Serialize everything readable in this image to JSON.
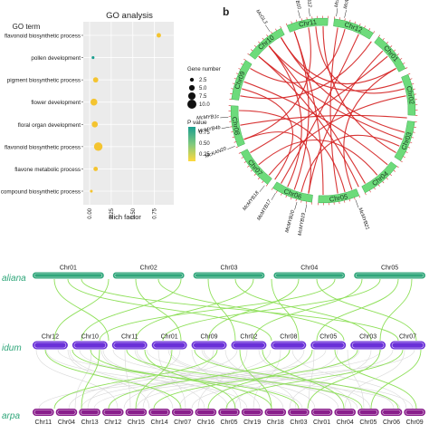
{
  "panel_a": {
    "title": "GO analysis",
    "legend_title": "GO term",
    "xlabel": "Rich factor",
    "terms": [
      "flavonoid biosynthetic process",
      "pollen development",
      "pigment biosynthetic process",
      "flower development",
      "floral organ development",
      "flavonoid biosynthetic process",
      "flavone metabolic process",
      "compound biosynthetic process"
    ],
    "size_legend": {
      "title": "Gene number",
      "values": [
        "2.5",
        "5.0",
        "7.5",
        "10.0"
      ]
    },
    "color_legend": {
      "title": "P value",
      "values": [
        "0.75",
        "0.50",
        "0.25"
      ],
      "colors": [
        "#1a9e8f",
        "#7fc97f",
        "#ffd93d"
      ]
    }
  },
  "chart_data": {
    "type": "scatter",
    "title": "GO analysis",
    "xlabel": "Rich factor",
    "ylabel": "GO term",
    "xlim": [
      0,
      0.9
    ],
    "x_ticks": [
      "0.00",
      "0.25",
      "0.50",
      "0.75"
    ],
    "categories": [
      "flavonoid biosynthetic process",
      "pollen development",
      "pigment biosynthetic process",
      "flower development",
      "floral organ development",
      "flavonoid biosynthetic process",
      "flavone metabolic process",
      "compound biosynthetic process"
    ],
    "x": [
      0.8,
      0.04,
      0.07,
      0.05,
      0.06,
      0.1,
      0.07,
      0.02
    ],
    "gene_number": [
      3,
      1,
      4,
      6,
      5,
      8,
      3,
      1
    ],
    "colors": [
      "#f4c430",
      "#1a9e8f",
      "#f4c430",
      "#f4c430",
      "#f4c430",
      "#f4c430",
      "#f4c430",
      "#f4c430"
    ]
  },
  "panel_b": {
    "label": "b",
    "chromosomes": [
      "Chr10",
      "Chr11",
      "Chr12",
      "Chr01",
      "Chr02",
      "Chr03",
      "Chr04",
      "Chr05",
      "Chr06",
      "Chr07",
      "Chr08",
      "Chr09"
    ],
    "gene_labels": [
      "McMYB10",
      "McMYB12",
      "McGL3",
      "McMYB6",
      "McMYB5",
      "McMYB4b",
      "McMYB1c",
      "McKAN20",
      "McMYB17",
      "McMYB18",
      "McMYB19",
      "McMYB20",
      "McMYB21"
    ],
    "ring_color": "#6ddb7b",
    "link_color": "#d42020"
  },
  "panel_c": {
    "species": [
      "aliana",
      "idum",
      "arpa"
    ],
    "track1": [
      "Chr01",
      "Chr02",
      "Chr03",
      "Chr04",
      "Chr05"
    ],
    "track2": [
      "Chr12",
      "Chr10",
      "Chr11",
      "Chr01",
      "Chr09",
      "Chr02",
      "Chr08",
      "Chr05",
      "Chr03",
      "Chr07"
    ],
    "track3": [
      "Chr11",
      "Chr04",
      "Chr13",
      "Chr12",
      "Chr15",
      "Chr14",
      "Chr07",
      "Chr16",
      "Chr05",
      "Chr19",
      "Chr18",
      "Chr03",
      "Chr01",
      "Chr04",
      "Chr05",
      "Chr06",
      "Chr09"
    ],
    "colors": {
      "track1": "#2fa67a",
      "track2": "#6a30d8",
      "track3": "#8a1f8c",
      "links": "#8fe05a",
      "species": "#2fa67a"
    }
  }
}
